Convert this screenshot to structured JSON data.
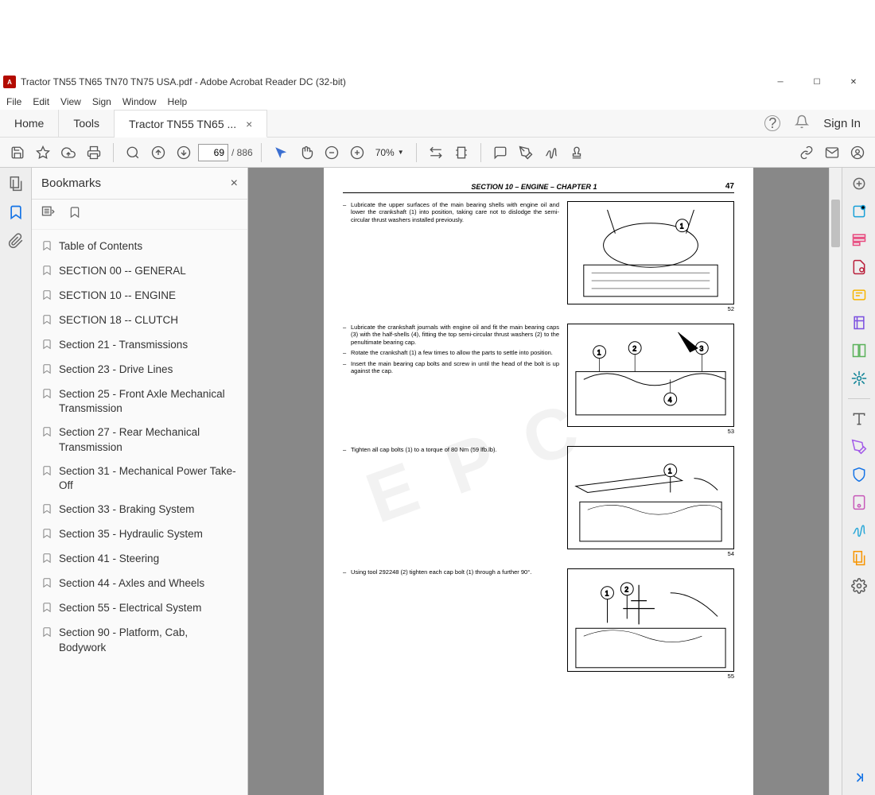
{
  "window": {
    "title": "Tractor TN55 TN65 TN70 TN75 USA.pdf - Adobe Acrobat Reader DC (32-bit)"
  },
  "menu": {
    "items": [
      "File",
      "Edit",
      "View",
      "Sign",
      "Window",
      "Help"
    ]
  },
  "tabs": {
    "home": "Home",
    "tools": "Tools",
    "doc": "Tractor TN55 TN65 ...",
    "signin": "Sign In"
  },
  "toolbar": {
    "page_current": "69",
    "page_total": "/ 886",
    "zoom": "70%"
  },
  "bookmarks": {
    "title": "Bookmarks",
    "items": [
      "Table of Contents",
      "SECTION 00 -- GENERAL",
      "SECTION 10 -- ENGINE",
      "SECTION 18 -- CLUTCH",
      "Section 21 - Transmissions",
      "Section 23 - Drive Lines",
      "Section 25 - Front Axle Mechanical Transmission",
      "Section 27 - Rear Mechanical Transmission",
      "Section 31 - Mechanical Power Take-Off",
      "Section 33 - Braking System",
      "Section 35 - Hydraulic System",
      "Section 41 - Steering",
      "Section 44 - Axles and Wheels",
      "Section 55 - Electrical System",
      "Section 90 - Platform, Cab, Bodywork"
    ]
  },
  "page": {
    "section": "SECTION 10 – ENGINE – CHAPTER 1",
    "number": "47",
    "steps": [
      {
        "text": [
          "Lubricate the upper surfaces of the main bearing shells with engine oil and lower the crankshaft (1) into position, taking care not to dislodge the semi-circular thrust washers installed previously."
        ],
        "fig": "52"
      },
      {
        "text": [
          "Lubricate the crankshaft journals with engine oil and fit the main bearing caps (3) with the half-shells (4), fitting the top semi-circular thrust washers (2) to the penultimate bearing cap.",
          "Rotate the crankshaft (1) a few times to allow the parts to settle into position.",
          "Insert the main bearing cap bolts and screw in until the head of the bolt is up against the cap."
        ],
        "fig": "53"
      },
      {
        "text": [
          "Tighten all cap bolts (1) to a torque of 80 Nm (59 lfb.lb)."
        ],
        "fig": "54"
      },
      {
        "text": [
          "Using tool 292248 (2) tighten each cap bolt (1) through a further 90°."
        ],
        "fig": "55"
      }
    ]
  },
  "right_tools_colors": [
    "#666",
    "#18a0d8",
    "#e8467c",
    "#b91f3b",
    "#f7b500",
    "#7b4fe0",
    "#59b159",
    "#0d8296",
    "#5a5a5a",
    "#a259e8",
    "#1473e6",
    "#c759b9",
    "#2aa8d8",
    "#f79500",
    "#555"
  ]
}
